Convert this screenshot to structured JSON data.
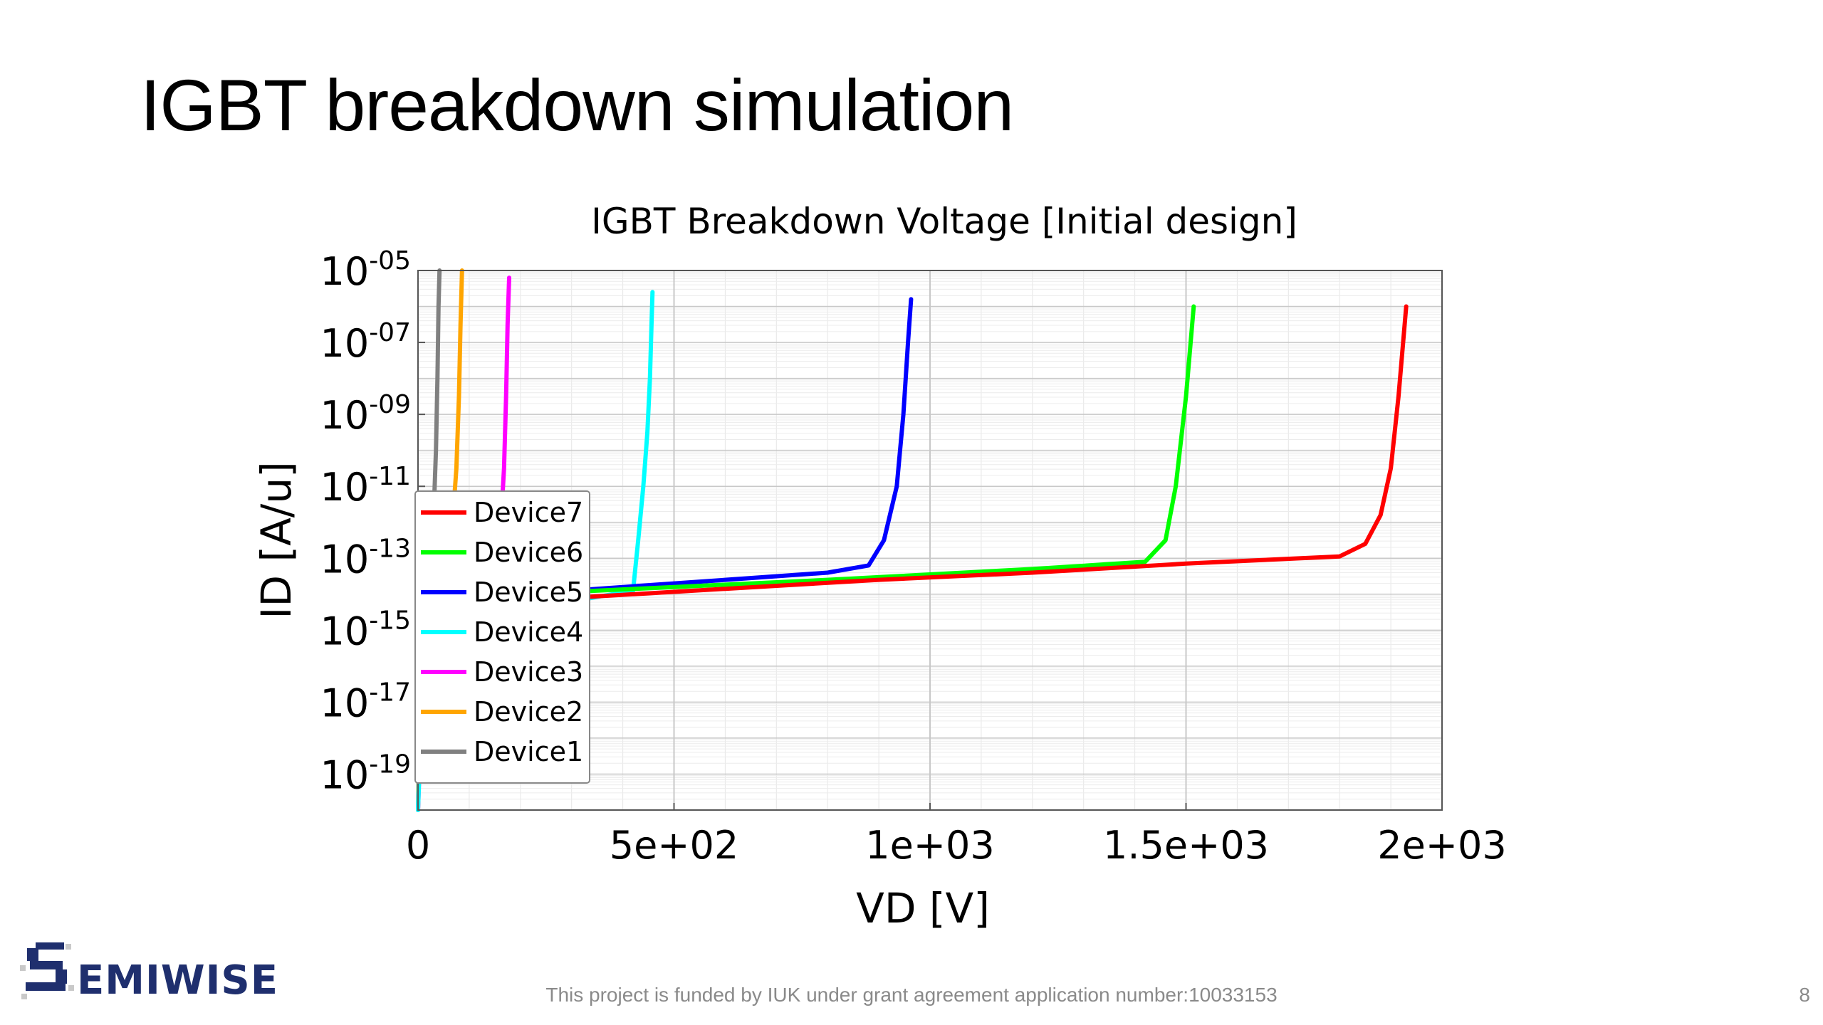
{
  "slide": {
    "title": "IGBT breakdown simulation",
    "footer": "This project is funded by IUK under grant agreement application number:10033153",
    "page_number": "8",
    "logo_text": "EMIWISE",
    "logo_initial": "S"
  },
  "chart_data": {
    "type": "line",
    "title": "IGBT Breakdown Voltage [Initial design]",
    "xlabel": "VD [V]",
    "ylabel": "ID [A/u]",
    "y_scale": "log",
    "xlim": [
      0,
      2000
    ],
    "ylim": [
      1e-20,
      1e-05
    ],
    "x_ticks": [
      {
        "value": 0,
        "label": "0"
      },
      {
        "value": 500,
        "label": "5e+02"
      },
      {
        "value": 1000,
        "label": "1e+03"
      },
      {
        "value": 1500,
        "label": "1.5e+03"
      },
      {
        "value": 2000,
        "label": "2e+03"
      }
    ],
    "y_ticks": [
      {
        "exp": -5,
        "base": "10",
        "sup": "-05"
      },
      {
        "exp": -7,
        "base": "10",
        "sup": "-07"
      },
      {
        "exp": -9,
        "base": "10",
        "sup": "-09"
      },
      {
        "exp": -11,
        "base": "10",
        "sup": "-11"
      },
      {
        "exp": -13,
        "base": "10",
        "sup": "-13"
      },
      {
        "exp": -15,
        "base": "10",
        "sup": "-15"
      },
      {
        "exp": -17,
        "base": "10",
        "sup": "-17"
      },
      {
        "exp": -19,
        "base": "10",
        "sup": "-19"
      }
    ],
    "grid": true,
    "legend_position": "center-left",
    "legend_order": [
      "Device7",
      "Device6",
      "Device5",
      "Device4",
      "Device3",
      "Device2",
      "Device1"
    ],
    "series": [
      {
        "name": "Device1",
        "color": "#808080",
        "x": [
          0,
          3,
          5,
          10,
          20,
          30,
          35,
          38,
          40,
          42
        ],
        "log_y": [
          -20,
          -16.5,
          -15,
          -14.5,
          -13.5,
          -12,
          -10,
          -8,
          -6,
          -5
        ]
      },
      {
        "name": "Device2",
        "color": "#ffa500",
        "x": [
          0,
          5,
          15,
          30,
          50,
          65,
          75,
          80,
          83,
          86
        ],
        "log_y": [
          -20,
          -16,
          -14.9,
          -14.5,
          -14.2,
          -12.5,
          -10.5,
          -8.5,
          -6.5,
          -5
        ]
      },
      {
        "name": "Device3",
        "color": "#ff00ff",
        "x": [
          0,
          10,
          30,
          80,
          140,
          160,
          168,
          172,
          175,
          178
        ],
        "log_y": [
          -20,
          -16,
          -15,
          -14.5,
          -14.1,
          -12.5,
          -10.5,
          -8.5,
          -6.5,
          -5.2
        ]
      },
      {
        "name": "Device4",
        "color": "#00ffff",
        "x": [
          0,
          10,
          50,
          150,
          300,
          420,
          430,
          440,
          448,
          453,
          456,
          458
        ],
        "log_y": [
          -20,
          -16,
          -15,
          -14.5,
          -14.2,
          -13.9,
          -12.5,
          -11,
          -9.5,
          -8,
          -6.5,
          -5.6
        ]
      },
      {
        "name": "Device5",
        "color": "#0000ff",
        "x": [
          0,
          200,
          400,
          600,
          800,
          880,
          910,
          935,
          948,
          957,
          963
        ],
        "log_y": [
          -14.2,
          -14,
          -13.8,
          -13.6,
          -13.4,
          -13.2,
          -12.5,
          -11,
          -9,
          -7,
          -5.8
        ]
      },
      {
        "name": "Device6",
        "color": "#00ff00",
        "x": [
          0,
          200,
          500,
          800,
          1000,
          1200,
          1420,
          1460,
          1480,
          1500,
          1515
        ],
        "log_y": [
          -14.2,
          -14,
          -13.8,
          -13.6,
          -13.45,
          -13.3,
          -13.1,
          -12.5,
          -11,
          -8.5,
          -6
        ]
      },
      {
        "name": "Device7",
        "color": "#ff0000",
        "x": [
          0,
          300,
          600,
          900,
          1200,
          1500,
          1800,
          1850,
          1880,
          1900,
          1915,
          1930
        ],
        "log_y": [
          -14.3,
          -14.1,
          -13.85,
          -13.6,
          -13.4,
          -13.15,
          -12.95,
          -12.6,
          -11.8,
          -10.5,
          -8.5,
          -6
        ]
      }
    ]
  }
}
